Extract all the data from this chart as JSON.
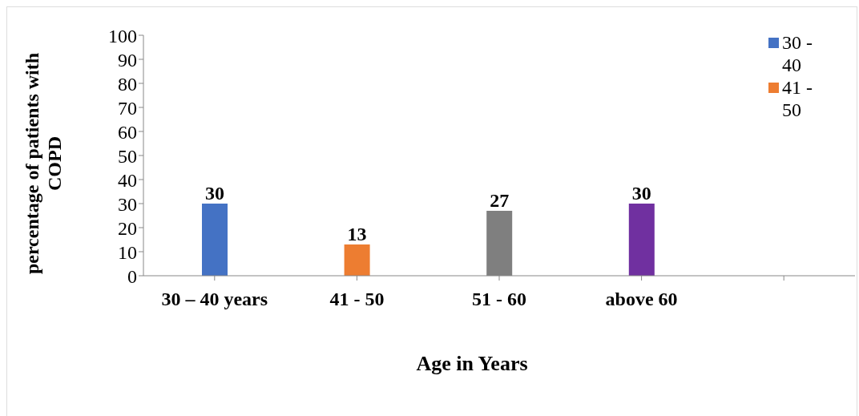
{
  "chart_data": {
    "type": "bar",
    "xlabel": "Age in Years",
    "ylabel": "percentage of patients with COPD",
    "categories": [
      "30 – 40 years",
      "41 - 50",
      "51 - 60",
      "above 60",
      null
    ],
    "series": [
      {
        "name": "30 - 40",
        "color": "#4472c4",
        "values": [
          30,
          null,
          null,
          null,
          null
        ]
      },
      {
        "name": "41 - 50",
        "color": "#ed7d31",
        "values": [
          null,
          13,
          null,
          null,
          null
        ]
      },
      {
        "color": "#7f7f7f",
        "values": [
          null,
          null,
          27,
          null,
          null
        ]
      },
      {
        "color": "#7030a0",
        "values": [
          null,
          null,
          null,
          30,
          null
        ]
      }
    ],
    "stacked": true,
    "ylim": [
      0,
      100
    ],
    "yticks": [
      0,
      10,
      20,
      30,
      40,
      50,
      60,
      70,
      80,
      90,
      100
    ],
    "data_labels": true,
    "grid": false,
    "legend": "top right"
  }
}
